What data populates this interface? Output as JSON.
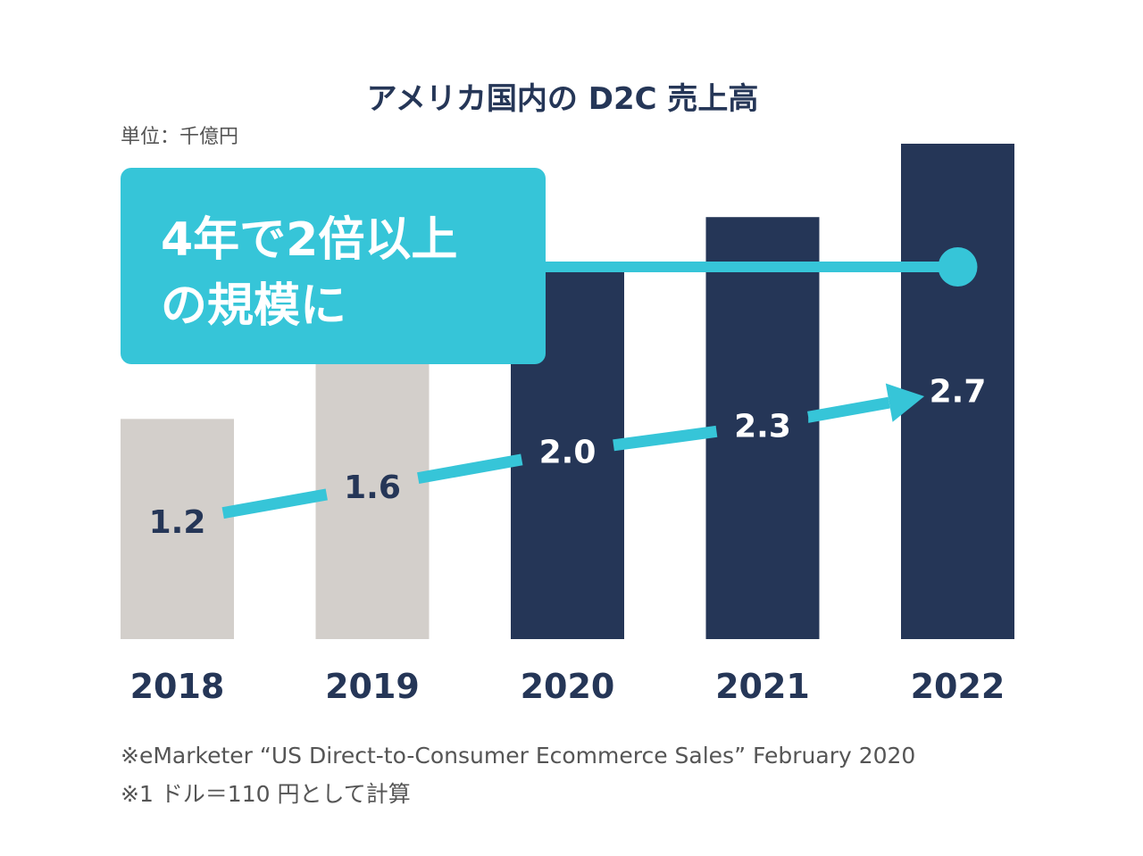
{
  "chart_data": {
    "type": "bar",
    "title": "アメリカ国内の D2C 売上高",
    "unit": "単位：千億円",
    "categories": [
      "2018",
      "2019",
      "2020",
      "2021",
      "2022"
    ],
    "values": [
      1.2,
      1.6,
      2.0,
      2.3,
      2.7
    ],
    "value_labels": [
      "1.2",
      "1.6",
      "2.0",
      "2.3",
      "2.7"
    ],
    "ylim": [
      0,
      2.7
    ],
    "xlabel": "",
    "ylabel": "",
    "bar_colors": [
      "#d3cfcb",
      "#d3cfcb",
      "#253657",
      "#253657",
      "#253657"
    ],
    "label_colors": [
      "#253657",
      "#253657",
      "#ffffff",
      "#ffffff",
      "#ffffff"
    ],
    "callout": {
      "line1": "4年で2倍以上",
      "line2": "の規模に"
    },
    "notes": [
      "※eMarketer “US Direct-to-Consumer Ecommerce Sales”  February 2020",
      "※1 ドル＝110 円として計算"
    ]
  },
  "colors": {
    "navy": "#253657",
    "gray": "#d3cfcb",
    "accent": "#36c5d8",
    "text": "#333333",
    "note": "#555555"
  }
}
